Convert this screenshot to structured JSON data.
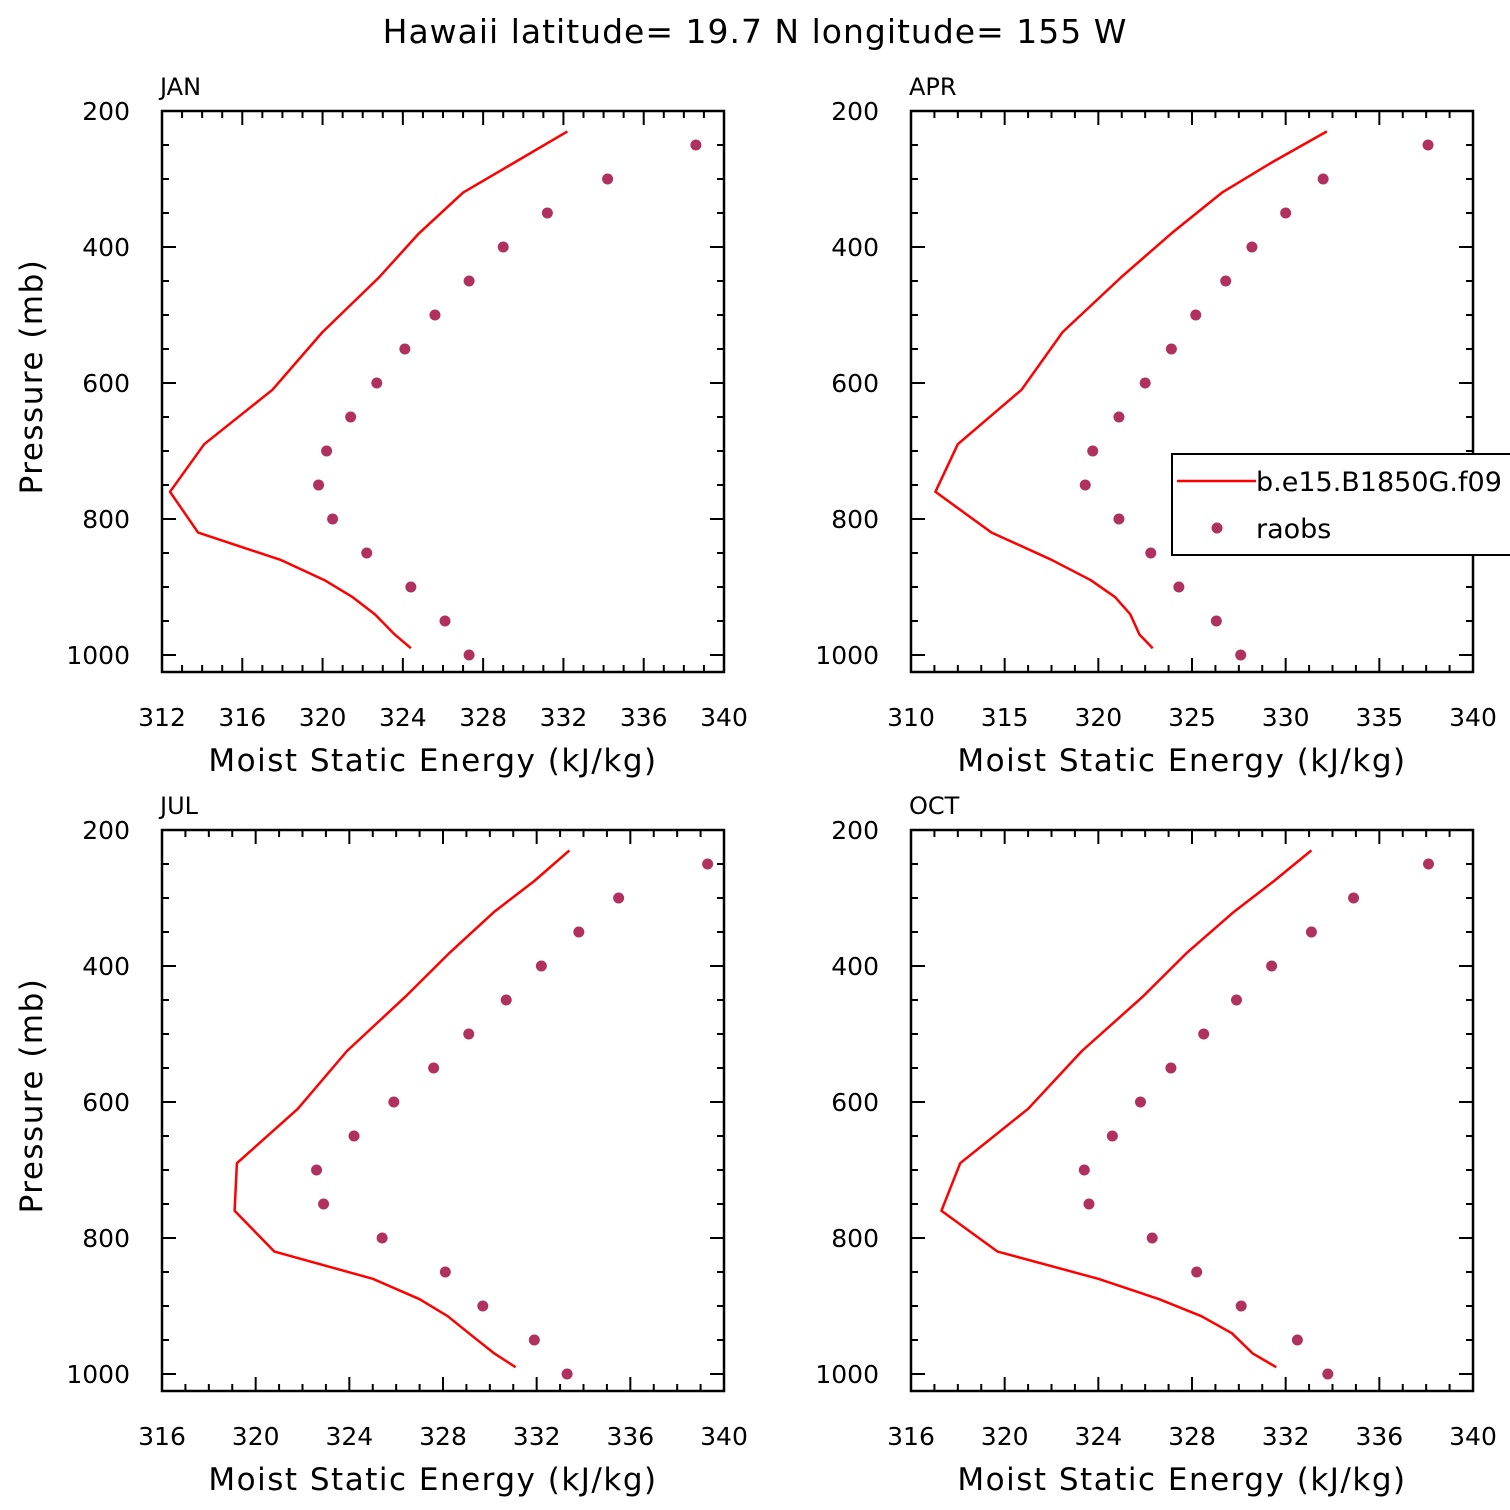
{
  "title": "Hawaii  latitude= 19.7 N longitude= 155 W",
  "legend": {
    "model_label": "b.e15.B1850G.f09",
    "obs_label": "raobs"
  },
  "colors": {
    "model_line": "#ff0000",
    "obs_marker": "#b03060",
    "axes": "#000000"
  },
  "chart_data": [
    {
      "type": "line",
      "panel_title": "JAN",
      "xlabel": "Moist Static Energy (kJ/kg)",
      "ylabel": "Pressure (mb)",
      "xlim": [
        312,
        340
      ],
      "xticks": [
        312,
        316,
        320,
        324,
        328,
        332,
        336,
        340
      ],
      "ylim": [
        200,
        1025
      ],
      "yticks": [
        200,
        400,
        600,
        800,
        1000
      ],
      "y_reversed": true,
      "series": [
        {
          "name": "b.e15.B1850G.f09",
          "kind": "line",
          "x": [
            332.2,
            329.6,
            327.0,
            324.8,
            322.8,
            320.0,
            317.5,
            314.1,
            312.4,
            313.8,
            317.9,
            320.1,
            321.5,
            322.6,
            323.6,
            324.4
          ],
          "y": [
            230,
            275,
            320,
            380,
            445,
            525,
            610,
            690,
            760,
            820,
            860,
            890,
            915,
            940,
            970,
            990
          ]
        },
        {
          "name": "raobs",
          "kind": "scatter",
          "x": [
            338.6,
            334.2,
            331.2,
            329.0,
            327.3,
            325.6,
            324.1,
            322.7,
            321.4,
            320.2,
            319.8,
            320.5,
            322.2,
            324.4,
            326.1,
            327.3
          ],
          "y": [
            250,
            300,
            350,
            400,
            450,
            500,
            550,
            600,
            650,
            700,
            750,
            800,
            850,
            900,
            950,
            1000
          ]
        }
      ]
    },
    {
      "type": "line",
      "panel_title": "APR",
      "xlabel": "Moist Static Energy (kJ/kg)",
      "ylabel": "",
      "xlim": [
        310,
        340
      ],
      "xticks": [
        310,
        315,
        320,
        325,
        330,
        335,
        340
      ],
      "ylim": [
        200,
        1025
      ],
      "yticks": [
        200,
        400,
        600,
        800,
        1000
      ],
      "y_reversed": true,
      "series": [
        {
          "name": "b.e15.B1850G.f09",
          "kind": "line",
          "x": [
            332.2,
            329.3,
            326.6,
            323.9,
            321.2,
            318.1,
            315.9,
            312.5,
            311.3,
            314.3,
            317.5,
            319.6,
            320.9,
            321.7,
            322.2,
            322.9
          ],
          "y": [
            230,
            275,
            320,
            380,
            445,
            525,
            610,
            690,
            760,
            820,
            860,
            890,
            915,
            940,
            970,
            990
          ]
        },
        {
          "name": "raobs",
          "kind": "scatter",
          "x": [
            337.6,
            332.0,
            330.0,
            328.2,
            326.8,
            325.2,
            323.9,
            322.5,
            321.1,
            319.7,
            319.3,
            321.1,
            322.8,
            324.3,
            326.3,
            327.6
          ],
          "y": [
            250,
            300,
            350,
            400,
            450,
            500,
            550,
            600,
            650,
            700,
            750,
            800,
            850,
            900,
            950,
            1000
          ]
        }
      ]
    },
    {
      "type": "line",
      "panel_title": "JUL",
      "xlabel": "Moist Static Energy (kJ/kg)",
      "ylabel": "Pressure (mb)",
      "xlim": [
        316,
        340
      ],
      "xticks": [
        316,
        320,
        324,
        328,
        332,
        336,
        340
      ],
      "ylim": [
        200,
        1025
      ],
      "yticks": [
        200,
        400,
        600,
        800,
        1000
      ],
      "y_reversed": true,
      "series": [
        {
          "name": "b.e15.B1850G.f09",
          "kind": "line",
          "x": [
            333.4,
            331.9,
            330.2,
            328.3,
            326.4,
            323.9,
            321.8,
            319.2,
            319.1,
            320.8,
            325.0,
            327.0,
            328.2,
            329.1,
            330.2,
            331.1
          ],
          "y": [
            230,
            275,
            320,
            380,
            445,
            525,
            610,
            690,
            760,
            820,
            860,
            890,
            915,
            940,
            970,
            990
          ]
        },
        {
          "name": "raobs",
          "kind": "scatter",
          "x": [
            339.3,
            335.5,
            333.8,
            332.2,
            330.7,
            329.1,
            327.6,
            325.9,
            324.2,
            322.6,
            322.9,
            325.4,
            328.1,
            329.7,
            331.9,
            333.3
          ],
          "y": [
            250,
            300,
            350,
            400,
            450,
            500,
            550,
            600,
            650,
            700,
            750,
            800,
            850,
            900,
            950,
            1000
          ]
        }
      ]
    },
    {
      "type": "line",
      "panel_title": "OCT",
      "xlabel": "Moist Static Energy (kJ/kg)",
      "ylabel": "",
      "xlim": [
        316,
        340
      ],
      "xticks": [
        316,
        320,
        324,
        328,
        332,
        336,
        340
      ],
      "ylim": [
        200,
        1025
      ],
      "yticks": [
        200,
        400,
        600,
        800,
        1000
      ],
      "y_reversed": true,
      "series": [
        {
          "name": "b.e15.B1850G.f09",
          "kind": "line",
          "x": [
            333.1,
            331.5,
            329.8,
            327.8,
            325.9,
            323.3,
            321.0,
            318.1,
            317.3,
            319.7,
            324.0,
            326.6,
            328.4,
            329.7,
            330.6,
            331.6
          ],
          "y": [
            230,
            275,
            320,
            380,
            445,
            525,
            610,
            690,
            760,
            820,
            860,
            890,
            915,
            940,
            970,
            990
          ]
        },
        {
          "name": "raobs",
          "kind": "scatter",
          "x": [
            338.1,
            334.9,
            333.1,
            331.4,
            329.9,
            328.5,
            327.1,
            325.8,
            324.6,
            323.4,
            323.6,
            326.3,
            328.2,
            330.1,
            332.5,
            333.8
          ],
          "y": [
            250,
            300,
            350,
            400,
            450,
            500,
            550,
            600,
            650,
            700,
            750,
            800,
            850,
            900,
            950,
            1000
          ]
        }
      ]
    }
  ]
}
